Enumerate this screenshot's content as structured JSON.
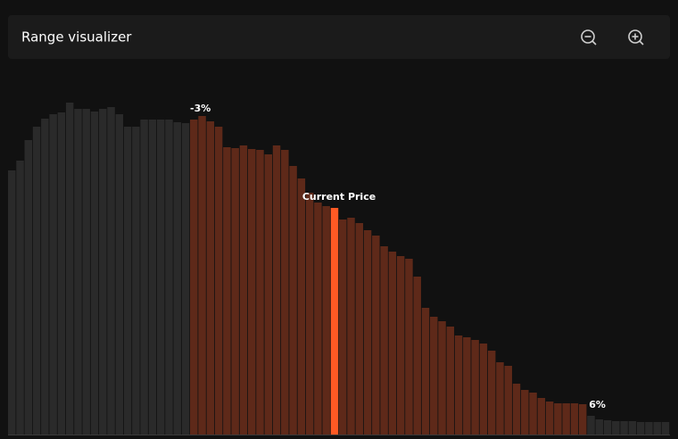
{
  "header": {
    "title": "Range visualizer"
  },
  "chart_data": {
    "type": "bar",
    "values": [
      296,
      307,
      330,
      345,
      354,
      359,
      361,
      372,
      365,
      365,
      362,
      365,
      367,
      359,
      345,
      345,
      353,
      353,
      353,
      353,
      350,
      349,
      353,
      357,
      351,
      345,
      322,
      321,
      324,
      320,
      319,
      314,
      324,
      319,
      301,
      287,
      271,
      260,
      256,
      254,
      241,
      243,
      237,
      229,
      223,
      211,
      205,
      200,
      197,
      177,
      142,
      132,
      127,
      121,
      111,
      109,
      106,
      102,
      94,
      81,
      77,
      57,
      50,
      47,
      41,
      37,
      35,
      35,
      35,
      34,
      21,
      17,
      16,
      15,
      15,
      15,
      14,
      14,
      14,
      14
    ],
    "colors": [
      "#2a2a2a",
      "#2a2a2a",
      "#2a2a2a",
      "#2a2a2a",
      "#2a2a2a",
      "#2a2a2a",
      "#2a2a2a",
      "#2a2a2a",
      "#2a2a2a",
      "#2a2a2a",
      "#2a2a2a",
      "#2a2a2a",
      "#2a2a2a",
      "#2a2a2a",
      "#2a2a2a",
      "#2a2a2a",
      "#2a2a2a",
      "#2a2a2a",
      "#2a2a2a",
      "#2a2a2a",
      "#2a2a2a",
      "#2a2a2a",
      "#5e2919",
      "#5e2919",
      "#5e2919",
      "#5e2919",
      "#5e2919",
      "#5e2919",
      "#5e2919",
      "#5e2919",
      "#5e2919",
      "#5e2919",
      "#5e2919",
      "#5e2919",
      "#5e2919",
      "#5e2919",
      "#5e2919",
      "#5e2919",
      "#5e2919",
      "#ff5a24",
      "#5e2919",
      "#5e2919",
      "#5e2919",
      "#5e2919",
      "#5e2919",
      "#5e2919",
      "#5e2919",
      "#5e2919",
      "#5e2919",
      "#5e2919",
      "#5e2919",
      "#5e2919",
      "#5e2919",
      "#5e2919",
      "#5e2919",
      "#5e2919",
      "#5e2919",
      "#5e2919",
      "#5e2919",
      "#5e2919",
      "#5e2919",
      "#5e2919",
      "#5e2919",
      "#5e2919",
      "#5e2919",
      "#5e2919",
      "#5e2919",
      "#5e2919",
      "#5e2919",
      "#5e2919",
      "#2a2a2a",
      "#2a2a2a",
      "#2a2a2a",
      "#2a2a2a",
      "#2a2a2a",
      "#2a2a2a",
      "#2a2a2a",
      "#2a2a2a",
      "#2a2a2a",
      "#2a2a2a"
    ],
    "annotations": {
      "range_start": "-3%",
      "current": "Current Price",
      "range_end": "6%"
    }
  }
}
